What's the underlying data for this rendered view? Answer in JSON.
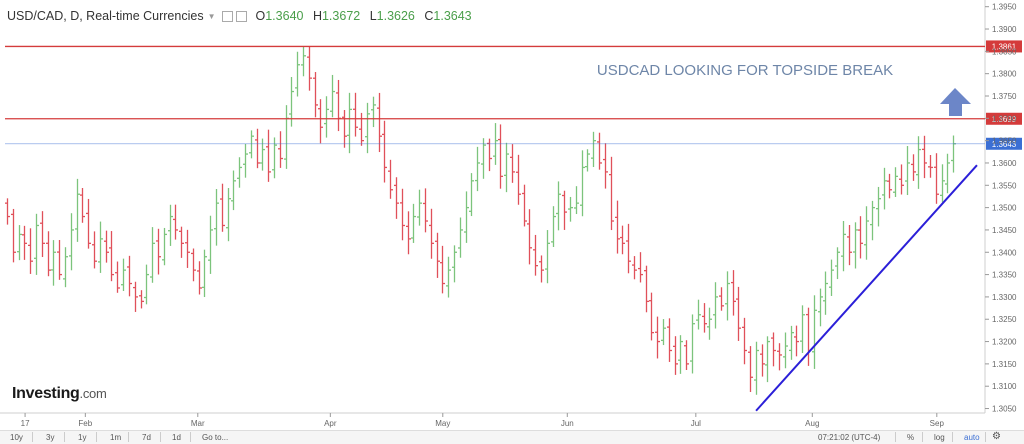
{
  "header": {
    "symbol": "USD/CAD, D, Real-time Currencies",
    "open_label": "O",
    "open_value": "1.3640",
    "high_label": "H",
    "high_value": "1.3672",
    "low_label": "L",
    "low_value": "1.3626",
    "close_label": "C",
    "close_value": "1.3643"
  },
  "brand": {
    "name": "Investing",
    "domain": ".com"
  },
  "bottom_bar": {
    "ranges": [
      "10y",
      "3y",
      "1y",
      "1m",
      "7d",
      "1d"
    ],
    "goto": "Go to...",
    "clock": "07:21:02 (UTC-4)",
    "percent": "%",
    "log": "log",
    "auto": "auto"
  },
  "colors": {
    "up": "#7cc47c",
    "down": "#e0505a",
    "resistance": "#d43b3b",
    "last_price": "#3b6fd4",
    "trendline": "#2b1fd8",
    "annotation": "#6e86a8",
    "arrow": "#6c86c8"
  },
  "chart_data": {
    "type": "ohlc-bar",
    "title": "USDCAD LOOKING FOR TOPSIDE BREAK",
    "x_tick_labels": [
      "17",
      "Feb",
      "Mar",
      "Apr",
      "May",
      "Jun",
      "Jul",
      "Aug",
      "Sep"
    ],
    "y_tick_labels": [
      "1.3950",
      "1.3900",
      "1.3850",
      "1.3800",
      "1.3750",
      "1.3700",
      "1.3650",
      "1.3600",
      "1.3550",
      "1.3500",
      "1.3450",
      "1.3400",
      "1.3350",
      "1.3300",
      "1.3250",
      "1.3200",
      "1.3150",
      "1.3100",
      "1.3050"
    ],
    "ylim": [
      1.304,
      1.3965
    ],
    "price_labels": [
      "1.3861",
      "1.3699",
      "1.3643"
    ],
    "resistance_levels": [
      1.3861,
      1.3699
    ],
    "last_price": 1.3643,
    "trendline": [
      {
        "date": "2017-07-18",
        "value": 1.3045
      },
      {
        "date": "2017-09-11",
        "value": 1.3595
      }
    ],
    "x_start_date": "2017-01-12",
    "closes": [
      1.348,
      1.34,
      1.344,
      1.342,
      1.338,
      1.346,
      1.342,
      1.336,
      1.34,
      1.335,
      1.339,
      1.345,
      1.353,
      1.348,
      1.342,
      1.338,
      1.343,
      1.34,
      1.335,
      1.332,
      1.336,
      1.333,
      1.33,
      1.329,
      1.335,
      1.342,
      1.339,
      1.344,
      1.348,
      1.345,
      1.342,
      1.34,
      1.336,
      1.332,
      1.339,
      1.345,
      1.351,
      1.346,
      1.352,
      1.356,
      1.359,
      1.362,
      1.366,
      1.36,
      1.363,
      1.358,
      1.364,
      1.361,
      1.37,
      1.376,
      1.382,
      1.384,
      1.379,
      1.373,
      1.368,
      1.372,
      1.376,
      1.37,
      1.366,
      1.372,
      1.368,
      1.365,
      1.371,
      1.373,
      1.366,
      1.359,
      1.354,
      1.351,
      1.346,
      1.343,
      1.348,
      1.351,
      1.347,
      1.342,
      1.338,
      1.333,
      1.336,
      1.34,
      1.345,
      1.35,
      1.356,
      1.36,
      1.364,
      1.361,
      1.365,
      1.357,
      1.362,
      1.358,
      1.353,
      1.347,
      1.341,
      1.337,
      1.336,
      1.342,
      1.348,
      1.353,
      1.349,
      1.35,
      1.351,
      1.359,
      1.362,
      1.365,
      1.36,
      1.358,
      1.347,
      1.343,
      1.342,
      1.338,
      1.336,
      1.335,
      1.329,
      1.322,
      1.32,
      1.323,
      1.318,
      1.315,
      1.32,
      1.315,
      1.324,
      1.326,
      1.324,
      1.325,
      1.33,
      1.328,
      1.333,
      1.329,
      1.323,
      1.318,
      1.312,
      1.318,
      1.315,
      1.32,
      1.318,
      1.317,
      1.319,
      1.322,
      1.32,
      1.326,
      1.318,
      1.327,
      1.33,
      1.333,
      1.336,
      1.34,
      1.344,
      1.34,
      1.345,
      1.342,
      1.347,
      1.35,
      1.352,
      1.356,
      1.354,
      1.357,
      1.355,
      1.36,
      1.358,
      1.363,
      1.36,
      1.359,
      1.353,
      1.356,
      1.36,
      1.3643
    ]
  }
}
